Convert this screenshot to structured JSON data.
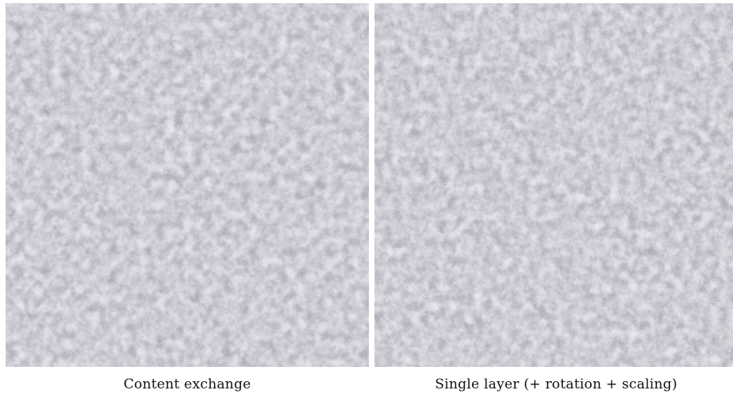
{
  "figure": {
    "panels": [
      {
        "caption": "Content exchange",
        "texture_palette": {
          "base": "#7d7a86",
          "dark": "#4f4d58",
          "light": "#c9c6d2",
          "highlight": "#e6e3ec"
        }
      },
      {
        "caption": "Single layer (+ rotation + scaling)",
        "texture_palette": {
          "base": "#7d7a86",
          "dark": "#4f4d58",
          "light": "#c9c6d2",
          "highlight": "#e6e3ec"
        }
      }
    ]
  }
}
